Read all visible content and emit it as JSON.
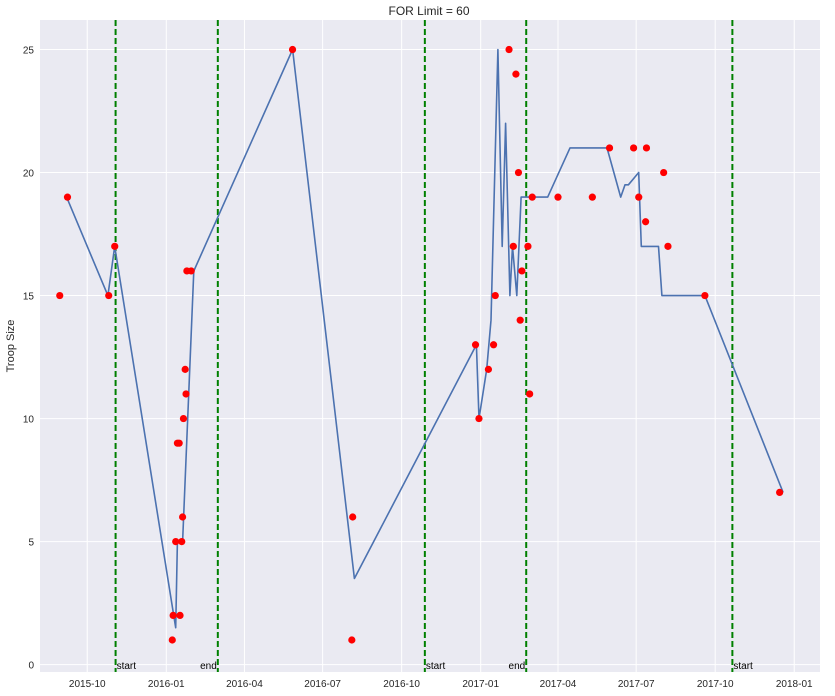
{
  "chart_data": {
    "type": "line",
    "title": "FOR Limit = 60",
    "ylabel": "Troop Size",
    "xlabel": "",
    "ylim": [
      -0.3,
      26.2
    ],
    "xlim": [
      "2015-08-07",
      "2018-01-31"
    ],
    "y_ticks": [
      0,
      5,
      10,
      15,
      20,
      25
    ],
    "x_ticks": [
      "2015-10",
      "2016-01",
      "2016-04",
      "2016-07",
      "2016-10",
      "2017-01",
      "2017-04",
      "2017-07",
      "2017-10",
      "2018-01"
    ],
    "grid": true,
    "colors": {
      "background": "#eaeaf2",
      "grid": "#ffffff",
      "line": "#4c72b0",
      "points": "#ff0000",
      "vlines": "#008000"
    },
    "series": [
      {
        "type": "line",
        "x": [
          "2015-09-07",
          "2015-10-25",
          "2015-11-02",
          "2016-01-12",
          "2016-01-14",
          "2016-01-20",
          "2016-02-02",
          "2016-05-27",
          "2016-08-07",
          "2016-12-27",
          "2016-12-30",
          "2017-01-08",
          "2017-01-13",
          "2017-01-21",
          "2017-01-26",
          "2017-01-30",
          "2017-02-04",
          "2017-02-07",
          "2017-02-12",
          "2017-02-17",
          "2017-02-27",
          "2017-03-20",
          "2017-04-15",
          "2017-04-28",
          "2017-05-28",
          "2017-06-13",
          "2017-06-18",
          "2017-06-22",
          "2017-07-04",
          "2017-07-07",
          "2017-07-27",
          "2017-07-31",
          "2017-09-19",
          "2017-12-19"
        ],
        "y": [
          19,
          15,
          17,
          1.5,
          5,
          5,
          16,
          25,
          3.5,
          13,
          10,
          12,
          14,
          25,
          17,
          22,
          15,
          17,
          15,
          19,
          19,
          19,
          21,
          21,
          21,
          19,
          19.5,
          19.5,
          20,
          17,
          17,
          15,
          15,
          7
        ]
      },
      {
        "type": "scatter",
        "x": [
          "2015-08-30",
          "2015-09-08",
          "2015-10-26",
          "2015-11-02",
          "2016-01-08",
          "2016-01-09",
          "2016-01-12",
          "2016-01-14",
          "2016-01-16",
          "2016-01-17",
          "2016-01-19",
          "2016-01-20",
          "2016-01-21",
          "2016-01-23",
          "2016-01-24",
          "2016-01-25",
          "2016-01-30",
          "2016-05-27",
          "2016-08-04",
          "2016-08-05",
          "2016-12-26",
          "2016-12-30",
          "2017-01-10",
          "2017-01-16",
          "2017-01-18",
          "2017-02-03",
          "2017-02-08",
          "2017-02-11",
          "2017-02-14",
          "2017-02-16",
          "2017-02-18",
          "2017-02-25",
          "2017-02-27",
          "2017-03-02",
          "2017-04-01",
          "2017-05-11",
          "2017-05-31",
          "2017-06-28",
          "2017-07-04",
          "2017-07-12",
          "2017-07-13",
          "2017-08-02",
          "2017-08-07",
          "2017-09-19",
          "2017-12-15"
        ],
        "y": [
          15,
          19,
          15,
          17,
          1,
          2,
          5,
          9,
          9,
          2,
          5,
          6,
          10,
          12,
          11,
          16,
          16,
          25,
          1,
          6,
          13,
          10,
          12,
          13,
          15,
          25,
          17,
          24,
          20,
          14,
          16,
          17,
          11,
          19,
          19,
          19,
          21,
          21,
          19,
          18,
          21,
          20,
          17,
          15,
          7
        ]
      }
    ],
    "vlines": [
      {
        "x": "2015-11-03",
        "label": "start",
        "label_side": "right"
      },
      {
        "x": "2016-03-01",
        "label": "end",
        "label_side": "left"
      },
      {
        "x": "2016-10-28",
        "label": "start",
        "label_side": "right"
      },
      {
        "x": "2017-02-23",
        "label": "end",
        "label_side": "left"
      },
      {
        "x": "2017-10-21",
        "label": "start",
        "label_side": "right"
      }
    ]
  }
}
